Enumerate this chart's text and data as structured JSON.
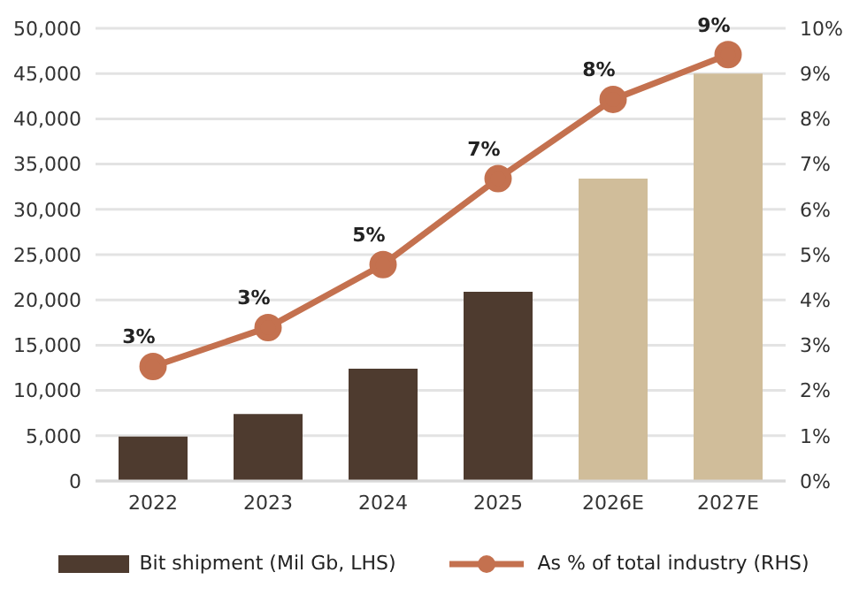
{
  "chart_data": {
    "type": "bar",
    "categories": [
      "2022",
      "2023",
      "2024",
      "2025",
      "2026E",
      "2027E"
    ],
    "series": [
      {
        "name": "Bit shipment (Mil Gb, LHS)",
        "color": "#4e3b2f",
        "colors": [
          "#4e3b2f",
          "#4e3b2f",
          "#4e3b2f",
          "#4e3b2f",
          "#d0bd9a",
          "#d0bd9a"
        ],
        "values": [
          4900,
          7400,
          12400,
          20900,
          33400,
          45000
        ]
      },
      {
        "name": "As % of total industry (RHS)",
        "type": "line",
        "axis": "y2",
        "color": "#c4714f",
        "marker": "circle",
        "values": [
          2.53,
          3.39,
          4.78,
          6.68,
          8.43,
          9.42
        ],
        "value_labels": [
          "3%",
          "3%",
          "5%",
          "7%",
          "8%",
          "9%"
        ]
      }
    ],
    "ylim": [
      0,
      50000
    ],
    "yticks": [
      {
        "value": 0,
        "label": "0"
      },
      {
        "value": 5000,
        "label": "5,000"
      },
      {
        "value": 10000,
        "label": "10,000"
      },
      {
        "value": 15000,
        "label": "15,000"
      },
      {
        "value": 20000,
        "label": "20,000"
      },
      {
        "value": 25000,
        "label": "25,000"
      },
      {
        "value": 30000,
        "label": "30,000"
      },
      {
        "value": 35000,
        "label": "35,000"
      },
      {
        "value": 40000,
        "label": "40,000"
      },
      {
        "value": 45000,
        "label": "45,000"
      },
      {
        "value": 50000,
        "label": "50,000"
      }
    ],
    "y2lim": [
      0,
      10
    ],
    "y2ticks": [
      {
        "value": 0,
        "label": "0%"
      },
      {
        "value": 1,
        "label": "1%"
      },
      {
        "value": 2,
        "label": "2%"
      },
      {
        "value": 3,
        "label": "3%"
      },
      {
        "value": 4,
        "label": "4%"
      },
      {
        "value": 5,
        "label": "5%"
      },
      {
        "value": 6,
        "label": "6%"
      },
      {
        "value": 7,
        "label": "7%"
      },
      {
        "value": 8,
        "label": "8%"
      },
      {
        "value": 9,
        "label": "9%"
      },
      {
        "value": 10,
        "label": "10%"
      }
    ],
    "grid": "y",
    "legend": "bottom"
  }
}
